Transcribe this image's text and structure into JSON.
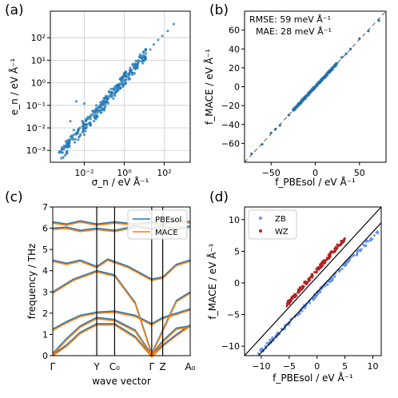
{
  "chart_data": [
    {
      "panel": "(a)",
      "type": "scatter",
      "xscale": "log",
      "yscale": "log",
      "xlabel": "σ_n / eV Å⁻¹",
      "ylabel": "e_n / eV Å⁻¹",
      "xlim": [
        0.0002,
        2000
      ],
      "ylim": [
        0.0003,
        1500
      ],
      "x_ticks": [
        "10⁻²",
        "10⁰",
        "10²"
      ],
      "y_ticks": [
        "10⁻³",
        "10⁻²",
        "10⁻¹",
        "10⁰",
        "10¹",
        "10²"
      ],
      "grid": true,
      "color": "#1f77b4",
      "points": [
        [
          0.00055,
          0.0008
        ],
        [
          0.0006,
          0.0009
        ],
        [
          0.0008,
          0.0012
        ],
        [
          0.001,
          0.0016
        ],
        [
          0.0013,
          0.002
        ],
        [
          0.0016,
          0.0025
        ],
        [
          0.002,
          0.003
        ],
        [
          0.0025,
          0.004
        ],
        [
          0.003,
          0.005
        ],
        [
          0.004,
          0.006
        ],
        [
          0.005,
          0.008
        ],
        [
          0.006,
          0.01
        ],
        [
          0.008,
          0.012
        ],
        [
          0.01,
          0.015
        ],
        [
          0.012,
          0.02
        ],
        [
          0.015,
          0.025
        ],
        [
          0.02,
          0.03
        ],
        [
          0.025,
          0.04
        ],
        [
          0.03,
          0.05
        ],
        [
          0.04,
          0.06
        ],
        [
          0.05,
          0.08
        ],
        [
          0.06,
          0.1
        ],
        [
          0.08,
          0.12
        ],
        [
          0.1,
          0.15
        ],
        [
          0.13,
          0.2
        ],
        [
          0.16,
          0.25
        ],
        [
          0.2,
          0.3
        ],
        [
          0.3,
          0.5
        ],
        [
          0.5,
          0.8
        ],
        [
          0.8,
          1.2
        ],
        [
          1.2,
          2
        ],
        [
          2,
          3
        ],
        [
          3,
          5
        ],
        [
          5,
          8
        ],
        [
          8,
          12
        ],
        [
          12,
          20
        ],
        [
          20,
          30
        ],
        [
          30,
          50
        ],
        [
          50,
          80
        ],
        [
          80,
          120
        ],
        [
          150,
          200
        ],
        [
          300,
          400
        ],
        [
          0.01,
          0.005
        ],
        [
          0.015,
          0.03
        ],
        [
          0.02,
          0.015
        ],
        [
          0.005,
          0.003
        ],
        [
          0.003,
          0.008
        ],
        [
          0.008,
          0.02
        ],
        [
          0.03,
          0.02
        ],
        [
          0.04,
          0.1
        ],
        [
          0.1,
          0.06
        ],
        [
          0.002,
          0.02
        ],
        [
          0.004,
          0.15
        ],
        [
          0.01,
          0.12
        ],
        [
          0.001,
          0.0015
        ],
        [
          0.0012,
          0.0025
        ]
      ]
    },
    {
      "panel": "(b)",
      "type": "scatter",
      "xlabel": "f_PBEsol / eV Å⁻¹",
      "ylabel": "f_MACE / eV Å⁻¹",
      "xlim": [
        -80,
        80
      ],
      "ylim": [
        -80,
        80
      ],
      "x_ticks": [
        -50,
        0,
        50
      ],
      "y_ticks": [
        -60,
        -40,
        -20,
        0,
        20,
        40,
        60
      ],
      "annotations": [
        "RMSE: 59 meV Å⁻¹",
        "MAE: 28 meV Å⁻¹"
      ],
      "diagonal": true,
      "color": "#1f77b4",
      "points": [
        [
          -72,
          -71
        ],
        [
          -60,
          -61
        ],
        [
          -50,
          -49
        ],
        [
          -40,
          -41
        ],
        [
          -30,
          -30
        ],
        [
          -20,
          -20
        ],
        [
          -10,
          -10
        ],
        [
          -5,
          -5
        ],
        [
          0,
          0
        ],
        [
          5,
          5
        ],
        [
          10,
          10
        ],
        [
          20,
          20
        ],
        [
          30,
          31
        ],
        [
          40,
          40
        ],
        [
          50,
          51
        ],
        [
          60,
          59
        ],
        [
          72,
          70
        ],
        [
          -25,
          -25
        ],
        [
          15,
          15
        ],
        [
          35,
          35
        ],
        [
          -45,
          -45
        ]
      ]
    },
    {
      "panel": "(c)",
      "type": "line",
      "xlabel": "wave vector",
      "ylabel": "frequency / THz",
      "ylim": [
        0,
        7
      ],
      "y_ticks": [
        0,
        1,
        2,
        3,
        4,
        5,
        6,
        7
      ],
      "x_ticks": [
        "Γ",
        "Y",
        "C₀",
        "Γ",
        "Z",
        "A₀"
      ],
      "x_tick_positions": [
        0,
        0.32,
        0.45,
        0.72,
        0.8,
        1.0
      ],
      "legend": [
        "PBEsol",
        "MACE"
      ],
      "legend_placement": "top-right",
      "series": [
        {
          "name": "PBEsol",
          "color": "#1f77b4"
        },
        {
          "name": "MACE",
          "color": "#ff7f0e"
        }
      ]
    },
    {
      "panel": "(d)",
      "type": "scatter",
      "xlabel": "f_PBEsol / eV Å⁻¹",
      "ylabel": "f_MACE / eV Å⁻¹",
      "xlim": [
        -13,
        11.5
      ],
      "ylim": [
        -11.5,
        12
      ],
      "x_ticks": [
        -10,
        -5,
        0,
        5,
        10
      ],
      "y_ticks": [
        -10,
        -5,
        0,
        5,
        10
      ],
      "legend": [
        "ZB",
        "WZ"
      ],
      "legend_placement": "top-left",
      "series": [
        {
          "name": "ZB",
          "color": "#6495ed",
          "from": [
            -10.5,
            -11.2
          ],
          "to": [
            11.0,
            8.2
          ]
        },
        {
          "name": "WZ",
          "color": "#b22222",
          "from": [
            -5.5,
            -3.5
          ],
          "to": [
            5.2,
            7.3
          ]
        }
      ],
      "reference_lines": [
        {
          "from": [
            -13,
            -11.5
          ],
          "to": [
            11.5,
            12
          ]
        },
        {
          "from": [
            -10.5,
            -11.5
          ],
          "to": [
            11.5,
            9.5
          ]
        }
      ]
    }
  ],
  "panel_labels": [
    "(a)",
    "(b)",
    "(c)",
    "(d)"
  ]
}
